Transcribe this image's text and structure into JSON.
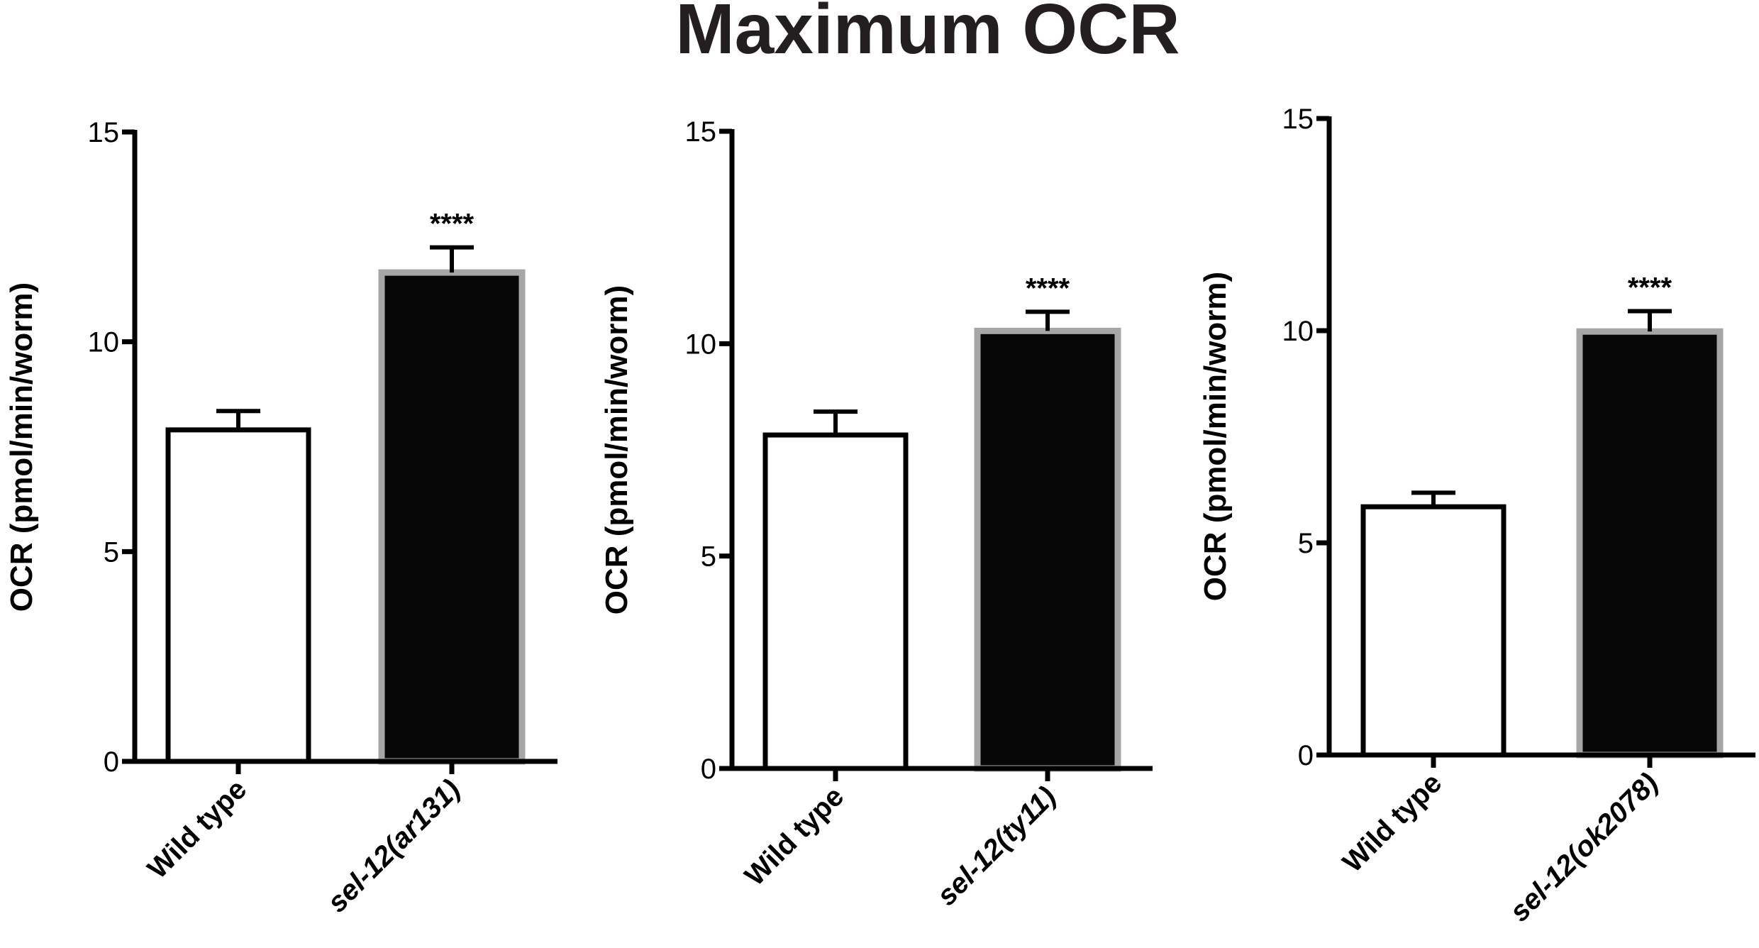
{
  "title": "Maximum OCR",
  "colors": {
    "axis": "#000000",
    "wild_type_fill": "#ffffff",
    "wild_type_stroke": "#000000",
    "mutant_fill": "#070707",
    "mutant_stroke": "#a6a6a6",
    "title": "#231f20"
  },
  "chart_data": [
    {
      "type": "bar",
      "ylabel": "OCR (pmol/min/worm)",
      "ylim": [
        0,
        15
      ],
      "yticks": [
        "0",
        "5",
        "10",
        "15"
      ],
      "categories": [
        "Wild type",
        "sel-12(ar131)"
      ],
      "category_parts": [
        {
          "prefix": "Wild type",
          "allele": ""
        },
        {
          "prefix": "sel-12",
          "allele": "(ar131)"
        }
      ],
      "values": [
        7.9,
        11.65
      ],
      "errors": [
        0.45,
        0.6
      ],
      "significance": [
        "",
        "****"
      ]
    },
    {
      "type": "bar",
      "ylabel": "OCR (pmol/min/worm)",
      "ylim": [
        0,
        15
      ],
      "yticks": [
        "0",
        "5",
        "10",
        "15"
      ],
      "categories": [
        "Wild type",
        "sel-12(ty11)"
      ],
      "category_parts": [
        {
          "prefix": "Wild type",
          "allele": ""
        },
        {
          "prefix": "sel-12",
          "allele": "(ty11)"
        }
      ],
      "values": [
        7.85,
        10.3
      ],
      "errors": [
        0.55,
        0.45
      ],
      "significance": [
        "",
        "****"
      ]
    },
    {
      "type": "bar",
      "ylabel": "OCR (pmol/min/worm)",
      "ylim": [
        0,
        15
      ],
      "yticks": [
        "0",
        "5",
        "10",
        "15"
      ],
      "categories": [
        "Wild type",
        "sel-12(ok2078)"
      ],
      "category_parts": [
        {
          "prefix": "Wild type",
          "allele": ""
        },
        {
          "prefix": "sel-12",
          "allele": "(ok2078)"
        }
      ],
      "values": [
        5.85,
        9.98
      ],
      "errors": [
        0.33,
        0.48
      ],
      "significance": [
        "",
        "****"
      ]
    }
  ]
}
